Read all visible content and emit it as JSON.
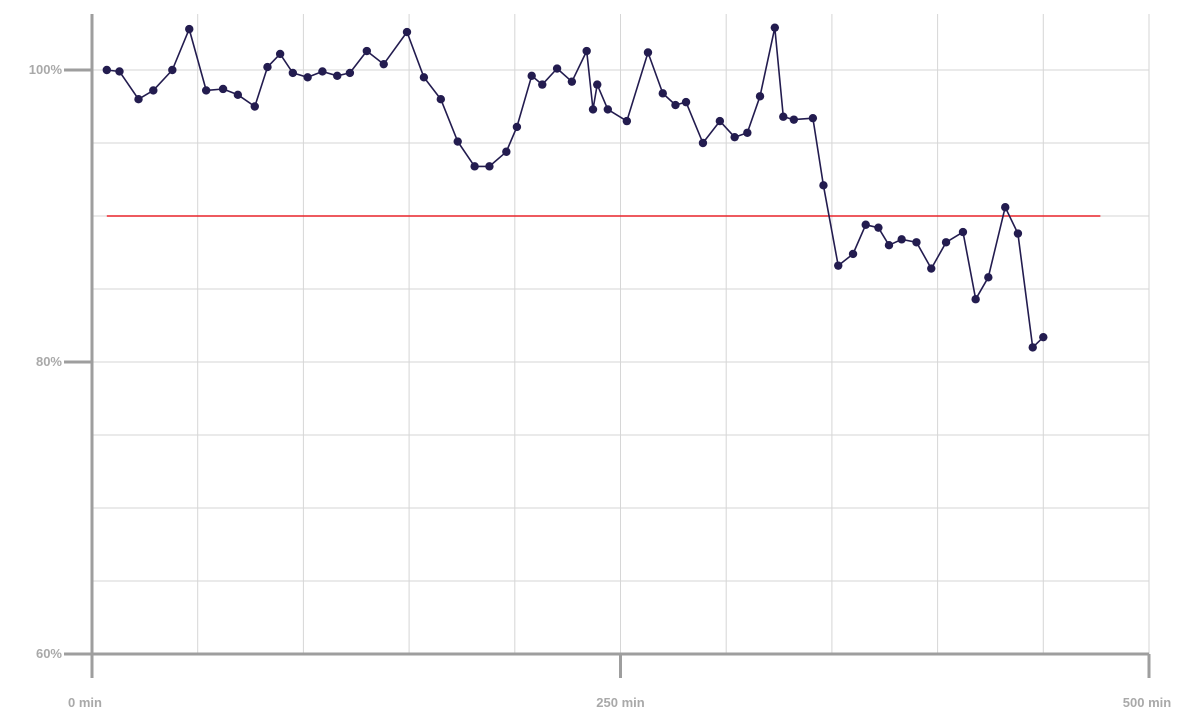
{
  "chart_data": {
    "type": "line",
    "title": "",
    "xlabel": "",
    "ylabel": "",
    "xlim": [
      0,
      500
    ],
    "ylim": [
      60,
      104
    ],
    "x_ticks": [
      {
        "value": 0,
        "label": "0 min"
      },
      {
        "value": 250,
        "label": "250 min"
      },
      {
        "value": 500,
        "label": "500 min"
      }
    ],
    "y_ticks": [
      {
        "value": 60,
        "label": "60%"
      },
      {
        "value": 80,
        "label": "80%"
      },
      {
        "value": 100,
        "label": "100%"
      }
    ],
    "x_gridlines": [
      50,
      100,
      150,
      200,
      250,
      300,
      350,
      400,
      450,
      500
    ],
    "y_gridlines": [
      65,
      70,
      75,
      80,
      85,
      90,
      95,
      100
    ],
    "grid": true,
    "reference_line": {
      "y": 90,
      "x_start": 7,
      "x_end": 477,
      "color": "#e8242a"
    },
    "series": [
      {
        "color": "#231c4f",
        "points": [
          [
            7,
            100.0
          ],
          [
            13,
            99.9
          ],
          [
            22,
            98.0
          ],
          [
            29,
            98.6
          ],
          [
            38,
            100.0
          ],
          [
            46,
            102.8
          ],
          [
            54,
            98.6
          ],
          [
            62,
            98.7
          ],
          [
            69,
            98.3
          ],
          [
            77,
            97.5
          ],
          [
            83,
            100.2
          ],
          [
            89,
            101.1
          ],
          [
            95,
            99.8
          ],
          [
            102,
            99.5
          ],
          [
            109,
            99.9
          ],
          [
            116,
            99.6
          ],
          [
            122,
            99.8
          ],
          [
            130,
            101.3
          ],
          [
            138,
            100.4
          ],
          [
            149,
            102.6
          ],
          [
            157,
            99.5
          ],
          [
            165,
            98.0
          ],
          [
            173,
            95.1
          ],
          [
            181,
            93.4
          ],
          [
            188,
            93.4
          ],
          [
            196,
            94.4
          ],
          [
            201,
            96.1
          ],
          [
            208,
            99.6
          ],
          [
            213,
            99.0
          ],
          [
            220,
            100.1
          ],
          [
            227,
            99.2
          ],
          [
            234,
            101.3
          ],
          [
            237,
            97.3
          ],
          [
            239,
            99.0
          ],
          [
            244,
            97.3
          ],
          [
            253,
            96.5
          ],
          [
            263,
            101.2
          ],
          [
            270,
            98.4
          ],
          [
            276,
            97.6
          ],
          [
            281,
            97.8
          ],
          [
            289,
            95.0
          ],
          [
            297,
            96.5
          ],
          [
            304,
            95.4
          ],
          [
            310,
            95.7
          ],
          [
            316,
            98.2
          ],
          [
            323,
            102.9
          ],
          [
            327,
            96.8
          ],
          [
            332,
            96.6
          ],
          [
            341,
            96.7
          ],
          [
            346,
            92.1
          ],
          [
            353,
            86.6
          ],
          [
            360,
            87.4
          ],
          [
            366,
            89.4
          ],
          [
            372,
            89.2
          ],
          [
            377,
            88.0
          ],
          [
            383,
            88.4
          ],
          [
            390,
            88.2
          ],
          [
            397,
            86.4
          ],
          [
            404,
            88.2
          ],
          [
            412,
            88.9
          ],
          [
            418,
            84.3
          ],
          [
            424,
            85.8
          ],
          [
            432,
            90.6
          ],
          [
            438,
            88.8
          ],
          [
            445,
            81.0
          ],
          [
            450,
            81.7
          ]
        ]
      }
    ]
  }
}
